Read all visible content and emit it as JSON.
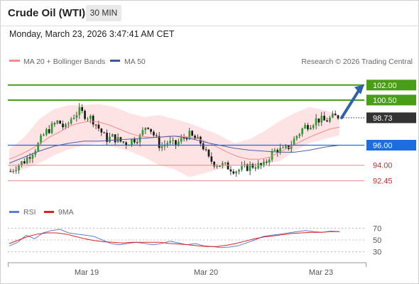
{
  "header": {
    "instrument": "Crude Oil (WTI)",
    "timeframe": "30 MIN",
    "datetime": "Monday, March 23, 2026 3:47:41 AM CET"
  },
  "legend": {
    "bb_label": "MA 20 + Bollinger Bands",
    "ma50_label": "MA 50",
    "credit": "Research © 2026 Trading Central",
    "bb_color": "#f28c8c",
    "ma50_color": "#3b5998"
  },
  "rsi_legend": {
    "rsi_label": "RSI",
    "ma_label": "9MA",
    "rsi_color": "#5b7fd6",
    "ma_color": "#e02020"
  },
  "chart_data": {
    "type": "line",
    "title": "",
    "price_ylim": [
      91.5,
      103.4
    ],
    "levels": [
      {
        "label": "102.00",
        "value": 102.0,
        "color": "#4a9d17",
        "kind": "resistance"
      },
      {
        "label": "100.50",
        "value": 100.5,
        "color": "#4a9d17",
        "kind": "resistance"
      },
      {
        "label": "98.73",
        "value": 98.73,
        "color": "#333333",
        "kind": "last"
      },
      {
        "label": "96.00",
        "value": 96.0,
        "color": "#1e6de0",
        "kind": "pivot"
      },
      {
        "label": "94.00",
        "value": 94.0,
        "color": "#e8888c",
        "kind": "support"
      },
      {
        "label": "92.45",
        "value": 92.45,
        "color": "#e8888c",
        "kind": "support"
      }
    ],
    "price_path": [
      93.4,
      94.0,
      94.4,
      95.2,
      96.0,
      97.2,
      97.8,
      98.4,
      97.6,
      98.8,
      99.4,
      99.0,
      98.6,
      97.6,
      96.6,
      96.8,
      96.4,
      96.2,
      96.6,
      96.8,
      98.2,
      97.0,
      95.8,
      96.3,
      96.0,
      96.5,
      97.1,
      96.6,
      96.2,
      94.6,
      94.2,
      94.0,
      93.8,
      93.5,
      93.6,
      93.9,
      94.0,
      93.8,
      95.0,
      95.6,
      95.4,
      96.0,
      97.0,
      97.8,
      98.2,
      98.6,
      98.4,
      98.7,
      98.9
    ],
    "ma20_path": [
      94.6,
      95.0,
      95.5,
      96.1,
      96.8,
      97.3,
      97.9,
      98.2,
      98.4,
      98.3,
      98.0,
      97.6,
      97.2,
      96.9,
      96.8,
      96.8,
      96.9,
      96.9,
      96.8,
      96.6,
      96.2,
      95.7,
      95.2,
      94.8,
      94.6,
      94.6,
      94.8,
      95.3,
      95.8,
      96.3,
      96.8,
      97.2,
      97.6,
      97.8
    ],
    "ma50_path": [
      94.2,
      94.8,
      95.4,
      95.9,
      96.2,
      96.4,
      96.4,
      96.5,
      96.6,
      96.7,
      96.8,
      96.9,
      96.7,
      96.3,
      96.0,
      95.7,
      95.5,
      95.4,
      95.3,
      95.3,
      95.5,
      95.8,
      96.0
    ],
    "bb_upper": [
      95.6,
      96.8,
      98.6,
      99.6,
      100.0,
      100.0,
      100.1,
      99.8,
      99.2,
      98.8,
      99.0,
      98.6,
      98.2,
      97.6,
      97.0,
      96.2,
      96.6,
      97.4,
      98.4,
      99.2,
      99.8,
      99.5,
      99.0
    ],
    "bb_lower": [
      93.2,
      93.6,
      94.2,
      95.0,
      95.6,
      96.0,
      96.2,
      95.8,
      95.4,
      94.8,
      94.0,
      93.6,
      92.8,
      93.2,
      93.6,
      94.0,
      94.0,
      94.2,
      94.4,
      95.4,
      96.2,
      96.6,
      97.0
    ],
    "forecast_arrow": {
      "from": 98.73,
      "to": 102.0
    },
    "x_tick_labels": [
      "Mar 19",
      "Mar 20",
      "Mar 23"
    ],
    "rsi_ylim": [
      20,
      80
    ],
    "rsi_ticks": [
      70,
      50,
      30
    ],
    "rsi_values": [
      40,
      46,
      58,
      52,
      62,
      66,
      68,
      62,
      60,
      58,
      56,
      50,
      44,
      42,
      44,
      46,
      44,
      42,
      44,
      48,
      45,
      42,
      44,
      40,
      39,
      37,
      38,
      40,
      45,
      50,
      56,
      58,
      60,
      62,
      64,
      66,
      64,
      63,
      65,
      64
    ],
    "rsi_ma_values": [
      44,
      50,
      56,
      60,
      62,
      62,
      60,
      56,
      52,
      49,
      47,
      46,
      45,
      46,
      46,
      46,
      46,
      44,
      43,
      42,
      40,
      39,
      39,
      41,
      44,
      48,
      52,
      55,
      57,
      59,
      61,
      62,
      63,
      63,
      64,
      64
    ],
    "grid": false
  }
}
